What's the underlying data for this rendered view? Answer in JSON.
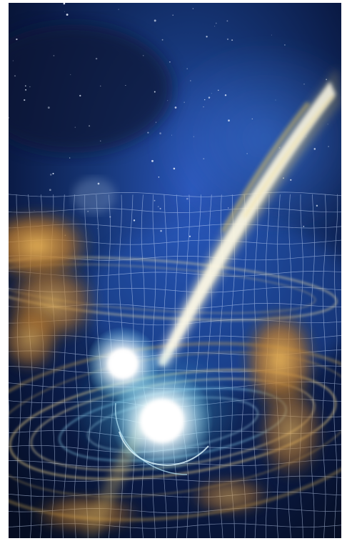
{
  "image": {
    "subject": "artist-rendering-neutron-star-merger",
    "colors": {
      "space_deep": "#07122b",
      "space_blue": "#1b3f8f",
      "nebula_blue": "#2f5fc4",
      "grid_line": "#cfe0ff",
      "jet_core": "#fff6d6",
      "jet_gold": "#e6c35a",
      "debris_orange": "#c98a2e",
      "debris_amber": "#e0a84a",
      "star_glow": "#ffffff",
      "cyan_glow": "#7fe6ff"
    }
  }
}
